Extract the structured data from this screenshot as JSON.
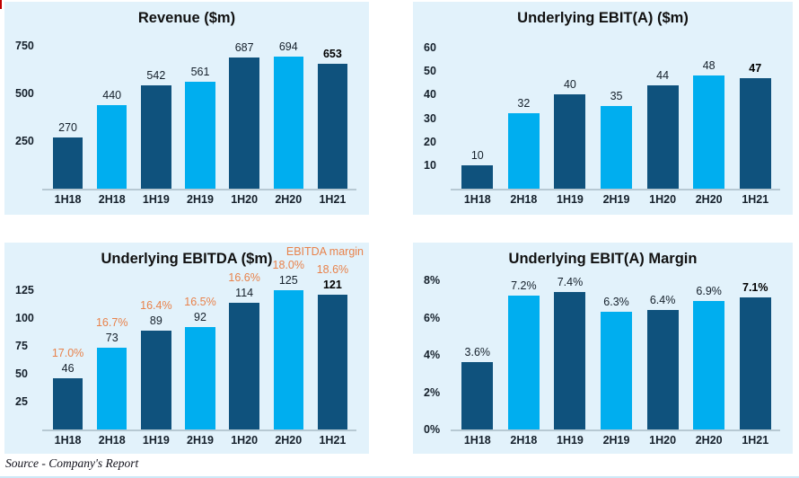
{
  "page": {
    "source_note": "Source - Company's Report"
  },
  "colors": {
    "bar_dark": "#0F527D",
    "bar_light": "#00AEEF",
    "panel_bg": "#E2F2FB",
    "accent_orange": "#E8824B",
    "axis_line_gray": "#8296A2",
    "bottom_rule_blue": "#CDE9F7",
    "corner_mark_red": "#C00000"
  },
  "chart_data": [
    {
      "id": "revenue",
      "type": "bar",
      "title": "Revenue ($m)",
      "categories": [
        "1H18",
        "2H18",
        "1H19",
        "2H19",
        "1H20",
        "2H20",
        "1H21"
      ],
      "values": [
        270,
        440,
        542,
        561,
        687,
        694,
        653
      ],
      "value_labels": [
        "270",
        "440",
        "542",
        "561",
        "687",
        "694",
        "653"
      ],
      "yticks": [
        {
          "value": 250,
          "label": "250"
        },
        {
          "value": 500,
          "label": "500"
        },
        {
          "value": 750,
          "label": "750"
        }
      ],
      "ylim": [
        0,
        800
      ],
      "grid": false,
      "emphasize_last": true
    },
    {
      "id": "underlying-ebita",
      "type": "bar",
      "title": "Underlying EBIT(A) ($m)",
      "categories": [
        "1H18",
        "2H18",
        "1H19",
        "2H19",
        "1H20",
        "2H20",
        "1H21"
      ],
      "values": [
        10,
        32,
        40,
        35,
        44,
        48,
        47
      ],
      "value_labels": [
        "10",
        "32",
        "40",
        "35",
        "44",
        "48",
        "47"
      ],
      "yticks": [
        {
          "value": 10,
          "label": "10"
        },
        {
          "value": 20,
          "label": "20"
        },
        {
          "value": 30,
          "label": "30"
        },
        {
          "value": 40,
          "label": "40"
        },
        {
          "value": 50,
          "label": "50"
        },
        {
          "value": 60,
          "label": "60"
        }
      ],
      "ylim": [
        0,
        65
      ],
      "grid": false,
      "emphasize_last": true
    },
    {
      "id": "underlying-ebitda",
      "type": "bar",
      "title": "Underlying EBITDA ($m)",
      "legend": "EBITDA margin",
      "categories": [
        "1H18",
        "2H18",
        "1H19",
        "2H19",
        "1H20",
        "2H20",
        "1H21"
      ],
      "values": [
        46,
        73,
        89,
        92,
        114,
        125,
        121
      ],
      "value_labels": [
        "46",
        "73",
        "89",
        "92",
        "114",
        "125",
        "121"
      ],
      "margin_labels": [
        "17.0%",
        "16.7%",
        "16.4%",
        "16.5%",
        "16.6%",
        "18.0%",
        "18.6%"
      ],
      "yticks": [
        {
          "value": 25,
          "label": "25"
        },
        {
          "value": 50,
          "label": "50"
        },
        {
          "value": 75,
          "label": "75"
        },
        {
          "value": 100,
          "label": "100"
        },
        {
          "value": 125,
          "label": "125"
        }
      ],
      "ylim": [
        0,
        137
      ],
      "grid": false,
      "emphasize_last": true
    },
    {
      "id": "underlying-ebita-margin",
      "type": "bar",
      "title": "Underlying EBIT(A) Margin",
      "categories": [
        "1H18",
        "2H18",
        "1H19",
        "2H19",
        "1H20",
        "2H20",
        "1H21"
      ],
      "values": [
        3.6,
        7.2,
        7.4,
        6.3,
        6.4,
        6.9,
        7.1
      ],
      "value_labels": [
        "3.6%",
        "7.2%",
        "7.4%",
        "6.3%",
        "6.4%",
        "6.9%",
        "7.1%"
      ],
      "yticks": [
        {
          "value": 0,
          "label": "0%"
        },
        {
          "value": 2,
          "label": "2%"
        },
        {
          "value": 4,
          "label": "4%"
        },
        {
          "value": 6,
          "label": "6%"
        },
        {
          "value": 8,
          "label": "8%"
        }
      ],
      "ylim": [
        0,
        8.2
      ],
      "grid": false,
      "emphasize_last": true
    }
  ]
}
